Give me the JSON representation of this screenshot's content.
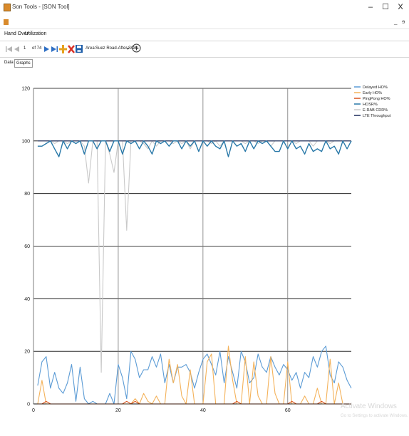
{
  "window": {
    "title": "Son Tools - [SON Tool]",
    "minimize": "–",
    "maximize": "☐",
    "close": "X"
  },
  "mdi": {
    "minimize": "_",
    "restore": "ɘ"
  },
  "menu": {
    "items": [
      "Hand Over",
      "Utilization"
    ]
  },
  "toolbar": {
    "page_value": "1",
    "page_total": "of 74",
    "area_label": "Area:",
    "area_value": "Suez Road-After SON",
    "dropdown_arrow": "▾"
  },
  "tabs": [
    "Data",
    "Graphs"
  ],
  "watermark": {
    "line1": "Activate Windows",
    "line2": "Go to Settings to activate Windows."
  },
  "colors": {
    "delayed": "#5b9bd5",
    "early": "#f4b25a",
    "pingpong": "#d9541e",
    "hosr": "#2878a8",
    "erab": "#c9c9c9",
    "lte": "#1a2a5a"
  },
  "chart_data": {
    "type": "line",
    "ylim": [
      0,
      120
    ],
    "xlim": [
      0,
      75
    ],
    "yticks": [
      0,
      20,
      40,
      60,
      80,
      100,
      120
    ],
    "xticks": [
      0,
      20,
      40,
      60
    ],
    "grid": true,
    "legend": "right",
    "series": [
      {
        "name": "Delayed HO%",
        "color_key": "delayed",
        "values": [
          7,
          16,
          18,
          6,
          12,
          6,
          4,
          8,
          15,
          1,
          14,
          2,
          0,
          1,
          0,
          0,
          0,
          4,
          0,
          15,
          10,
          2,
          20,
          17,
          10,
          13,
          13,
          18,
          14,
          19,
          8,
          15,
          8,
          14,
          14,
          15,
          12,
          6,
          12,
          17,
          19,
          15,
          11,
          20,
          8,
          18,
          12,
          6,
          20,
          16,
          8,
          10,
          19,
          14,
          12,
          18,
          14,
          11,
          15,
          13,
          9,
          12,
          6,
          12,
          10,
          18,
          14,
          20,
          22,
          11,
          8,
          16,
          14,
          9,
          6
        ]
      },
      {
        "name": "Early HO%",
        "color_key": "early",
        "values": [
          0,
          9,
          0,
          0,
          0,
          0,
          0,
          0,
          0,
          0,
          0,
          0,
          0,
          0,
          0,
          0,
          0,
          0,
          0,
          0,
          0,
          0,
          0,
          2,
          0,
          4,
          1,
          0,
          3,
          0,
          0,
          17,
          8,
          15,
          3,
          0,
          13,
          0,
          0,
          0,
          16,
          19,
          0,
          0,
          0,
          22,
          9,
          0,
          0,
          18,
          0,
          16,
          3,
          0,
          0,
          18,
          4,
          0,
          0,
          16,
          0,
          0,
          0,
          3,
          0,
          0,
          6,
          0,
          0,
          17,
          0,
          8,
          0,
          0,
          0
        ]
      },
      {
        "name": "PingPong HO%",
        "color_key": "pingpong",
        "values": [
          0,
          0,
          1,
          0,
          0,
          0,
          0,
          0,
          0,
          0,
          0,
          0,
          0,
          0,
          0,
          0,
          0,
          0,
          0,
          0,
          0,
          1,
          0,
          1,
          0,
          0,
          0,
          0,
          0,
          0,
          0,
          0,
          0,
          0,
          0,
          0,
          0,
          0,
          0,
          0,
          0,
          0,
          0,
          0,
          0,
          0,
          0,
          1,
          0,
          0,
          0,
          0,
          0,
          0,
          0,
          0,
          0,
          0,
          0,
          0,
          1,
          0,
          0,
          0,
          0,
          0,
          0,
          1,
          0,
          0,
          0,
          0,
          0,
          0,
          0
        ]
      },
      {
        "name": "HOSR%",
        "color_key": "hosr",
        "values": [
          98,
          98,
          99,
          100,
          97,
          94,
          100,
          97,
          100,
          99,
          100,
          95,
          100,
          100,
          97,
          100,
          100,
          96,
          100,
          100,
          95,
          100,
          99,
          100,
          97,
          100,
          98,
          95,
          100,
          99,
          100,
          98,
          100,
          100,
          97,
          100,
          98,
          100,
          96,
          100,
          98,
          100,
          98,
          97,
          100,
          94,
          100,
          98,
          99,
          96,
          100,
          97,
          100,
          99,
          100,
          98,
          96,
          96,
          100,
          97,
          100,
          97,
          98,
          95,
          99,
          96,
          97,
          96,
          100,
          97,
          98,
          95,
          100,
          97,
          100
        ]
      },
      {
        "name": "E-RAB CDR%",
        "color_key": "erab",
        "values": [
          100,
          100,
          100,
          100,
          99,
          100,
          100,
          99,
          100,
          100,
          100,
          98,
          84,
          100,
          100,
          12,
          100,
          95,
          88,
          100,
          100,
          66,
          100,
          100,
          100,
          99,
          97,
          100,
          98,
          100,
          100,
          100,
          99,
          100,
          99,
          100,
          97,
          100,
          100,
          100,
          100,
          99,
          100,
          98,
          100,
          100,
          100,
          100,
          100,
          99,
          100,
          100,
          99,
          100,
          100,
          98,
          100,
          100,
          100,
          100,
          100,
          99,
          100,
          100,
          100,
          98,
          100,
          100,
          100,
          99,
          100,
          100,
          100,
          100,
          100
        ]
      },
      {
        "name": "LTE Throughput",
        "color_key": "lte",
        "values": [
          100,
          100,
          100,
          100,
          100,
          100,
          100,
          100,
          100,
          100,
          100,
          100,
          100,
          100,
          100,
          100,
          100,
          100,
          100,
          100,
          100,
          100,
          100,
          100,
          100,
          100,
          100,
          100,
          100,
          100,
          100,
          100,
          100,
          100,
          100,
          100,
          100,
          100,
          100,
          100,
          100,
          100,
          100,
          100,
          100,
          100,
          100,
          100,
          100,
          100,
          100,
          100,
          100,
          100,
          100,
          100,
          100,
          100,
          100,
          100,
          100,
          100,
          100,
          100,
          100,
          100,
          100,
          100,
          100,
          100,
          100,
          100,
          100,
          100,
          100
        ]
      }
    ]
  }
}
